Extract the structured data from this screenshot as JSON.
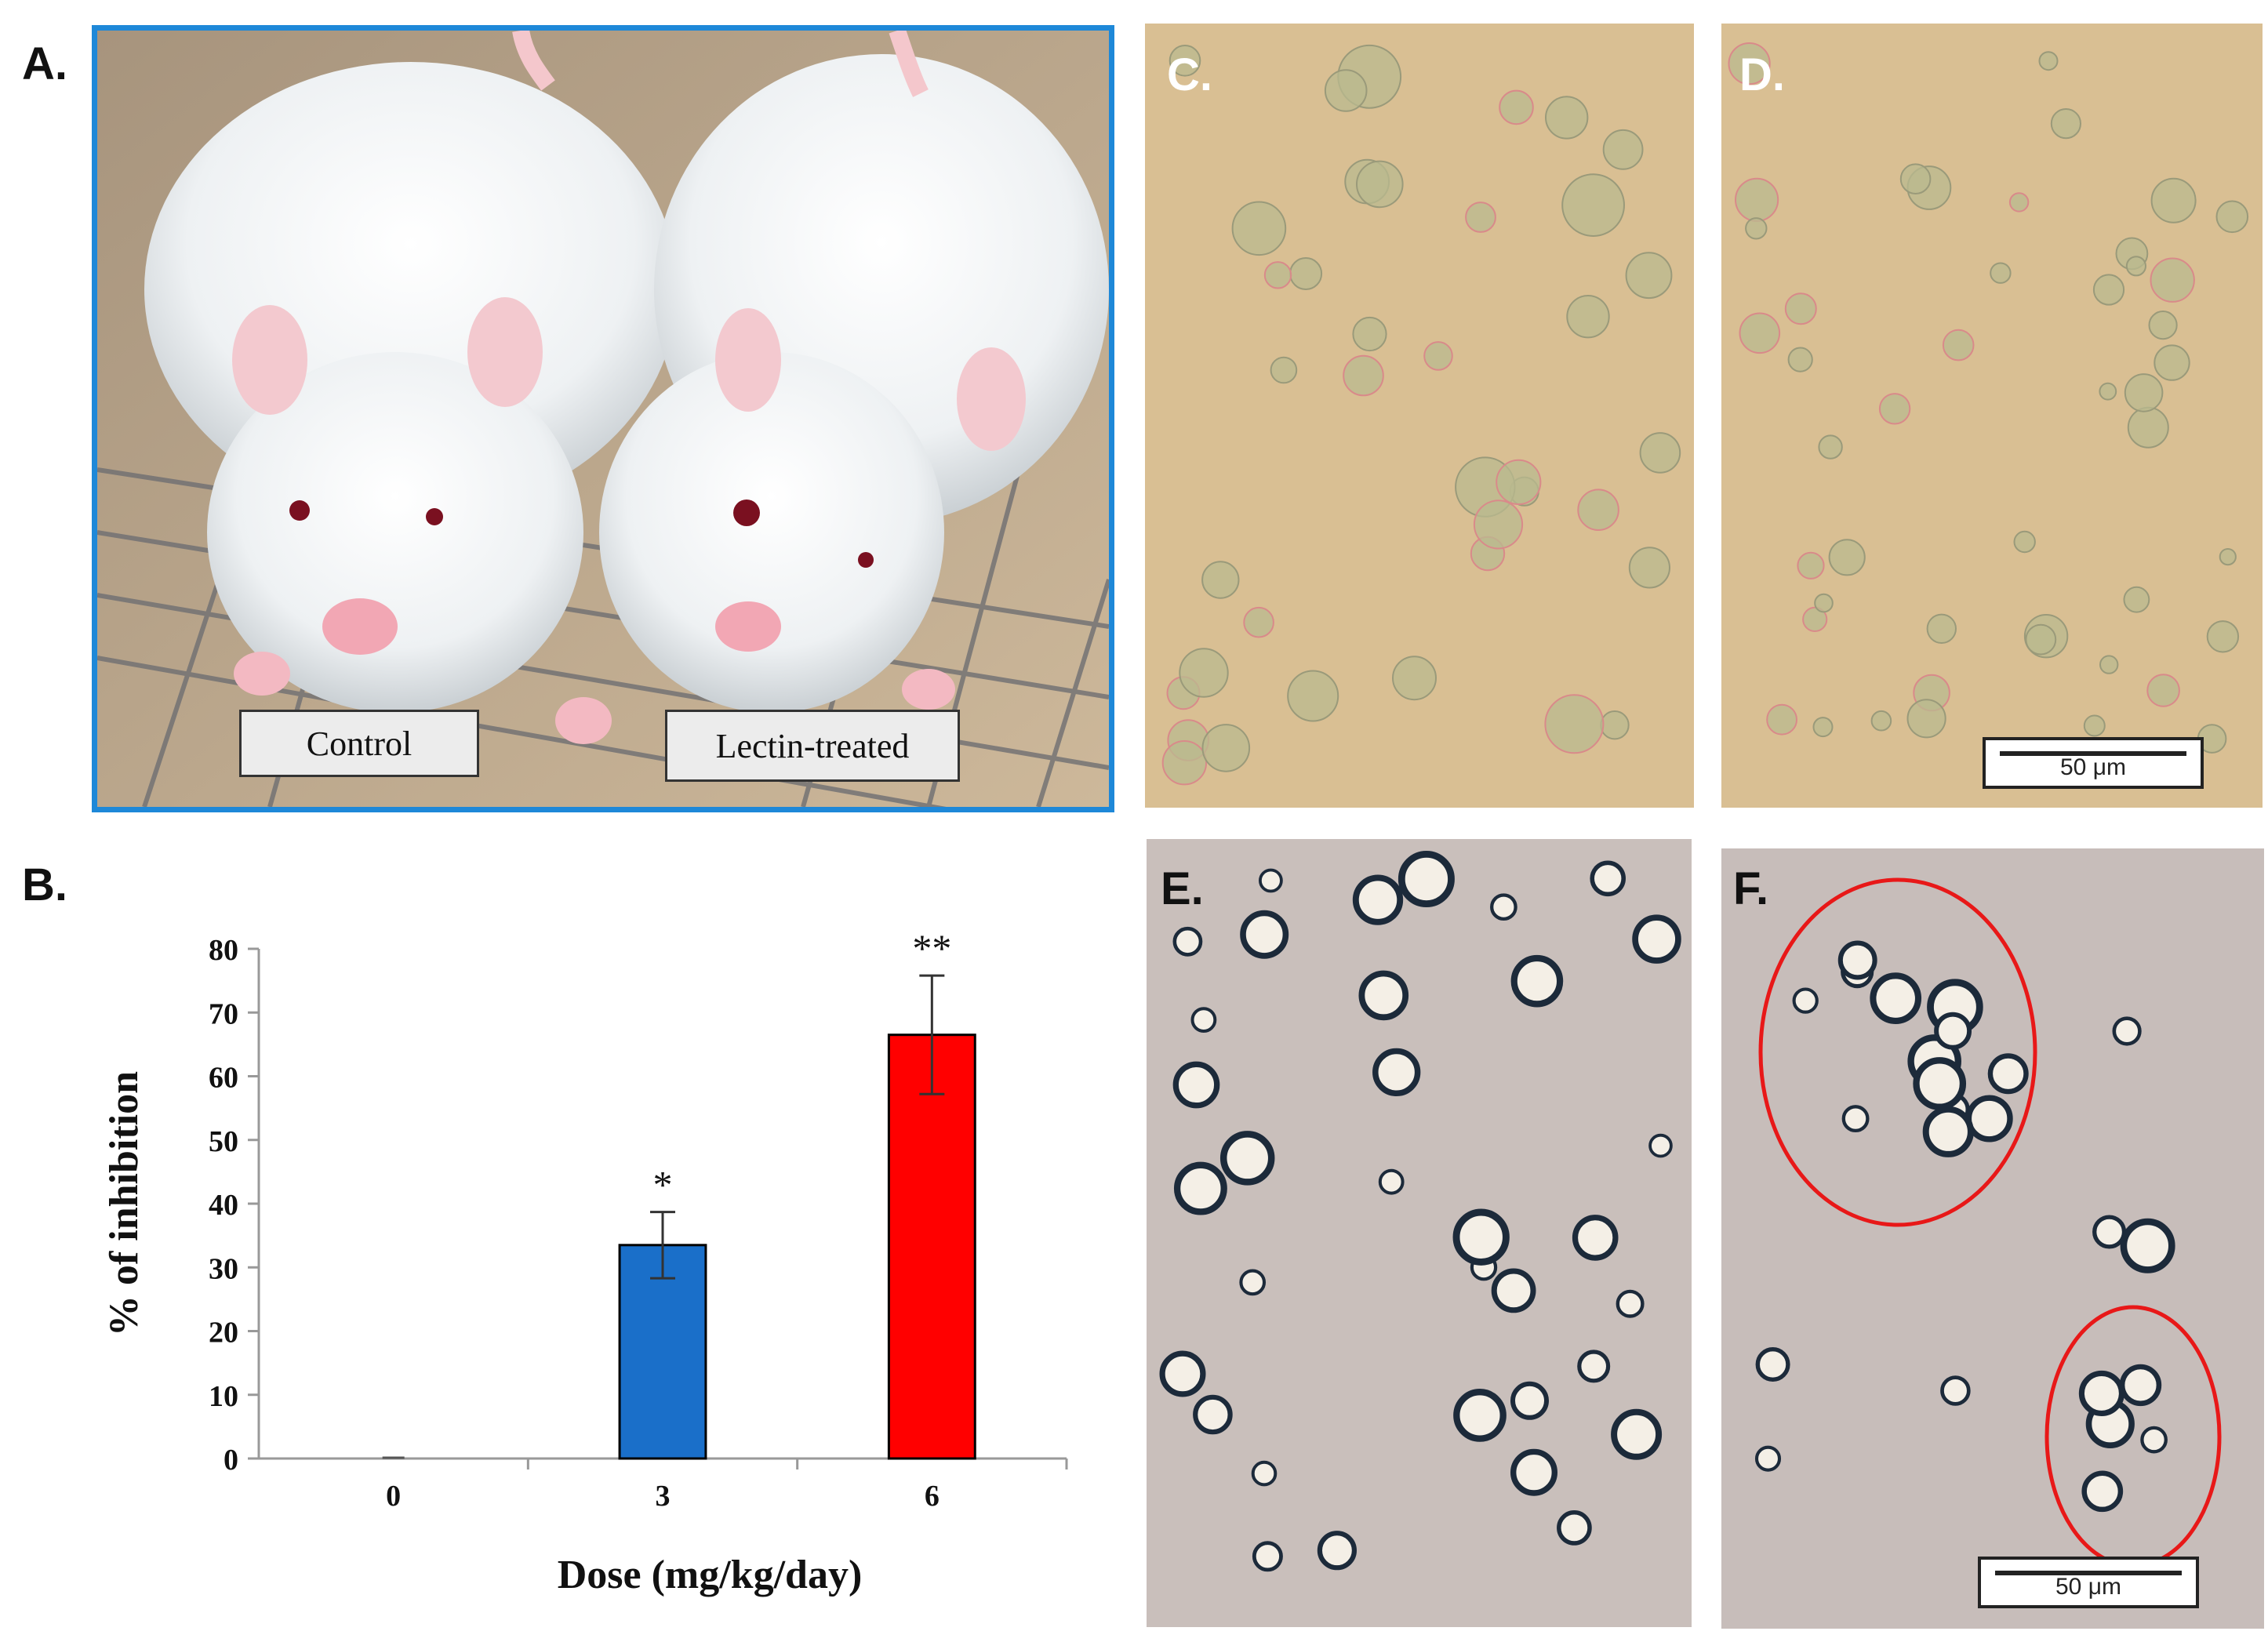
{
  "panels": {
    "a": "A.",
    "b": "B.",
    "c": "C.",
    "d": "D.",
    "e": "E.",
    "f": "F."
  },
  "rat_photo": {
    "label_control": "Control",
    "label_treated": "Lectin-treated",
    "frame_color": "#1e88d8"
  },
  "scale_bar": "50 μm",
  "chart_data": {
    "type": "bar",
    "categories": [
      "0",
      "3",
      "6"
    ],
    "values": [
      0,
      33.5,
      66.5
    ],
    "errors": [
      0,
      5.2,
      9.3
    ],
    "significance": [
      "",
      "*",
      "**"
    ],
    "colors": [
      "#1a5fb4",
      "#1a6fc9",
      "#ff0000"
    ],
    "xlabel": "Dose (mg/kg/day)",
    "ylabel": "% of inhibition",
    "ylim": [
      0,
      80
    ],
    "yticks": [
      0,
      10,
      20,
      30,
      40,
      50,
      60,
      70,
      80
    ],
    "grid": false
  }
}
